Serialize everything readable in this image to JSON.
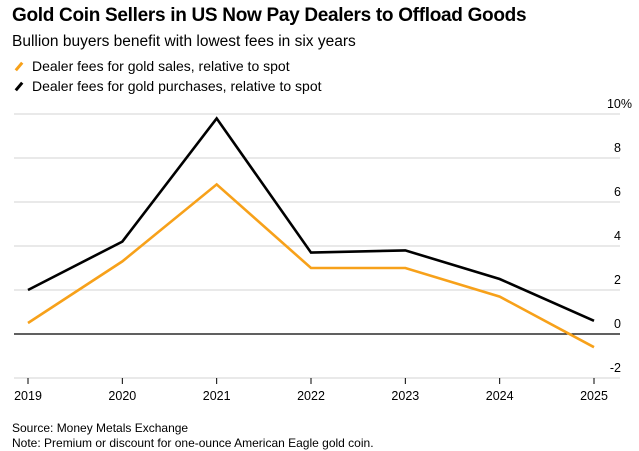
{
  "chart_data": {
    "type": "line",
    "title": "Gold Coin Sellers in US Now Pay Dealers to Offload Goods",
    "subtitle": "Bullion buyers benefit with lowest fees in six years",
    "x": [
      "2019",
      "2020",
      "2021",
      "2022",
      "2023",
      "2024",
      "2025"
    ],
    "series": [
      {
        "name": "Dealer fees for gold sales, relative to spot",
        "color": "#f7a11a",
        "values": [
          0.5,
          3.3,
          6.8,
          3.0,
          3.0,
          1.7,
          -0.6
        ]
      },
      {
        "name": "Dealer fees for gold purchases, relative to spot",
        "color": "#000000",
        "values": [
          2.0,
          4.2,
          9.8,
          3.7,
          3.8,
          2.5,
          0.6
        ]
      }
    ],
    "ylim": [
      -2,
      10
    ],
    "yticks": [
      "10%",
      "8",
      "6",
      "4",
      "2",
      "0",
      "-2"
    ],
    "ytick_values": [
      10,
      8,
      6,
      4,
      2,
      0,
      -2
    ],
    "grid": true,
    "legend": "top-left",
    "xlabel": "",
    "ylabel": ""
  },
  "footer": {
    "source": "Source: Money Metals Exchange",
    "note": "Note: Premium or discount for one-ounce American Eagle gold coin."
  }
}
